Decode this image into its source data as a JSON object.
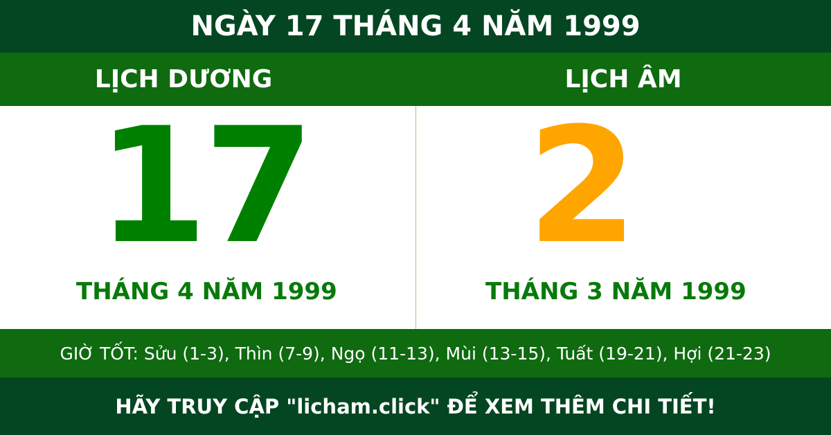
{
  "title": "NGÀY 17 THÁNG 4 NĂM 1999",
  "solar": {
    "label": "LỊCH DƯƠNG",
    "day": "17",
    "month_year": "THÁNG 4 NĂM 1999"
  },
  "lunar": {
    "label": "LỊCH ÂM",
    "day": "2",
    "month_year": "THÁNG 3 NĂM 1999"
  },
  "good_hours": "GIỜ TỐT: Sửu (1-3), Thìn (7-9), Ngọ (11-13), Mùi (13-15), Tuất (19-21), Hợi (21-23)",
  "footer": "HÃY TRUY CẬP \"licham.click\" ĐỂ XEM THÊM CHI TIẾT!",
  "colors": {
    "dark_green": "#044622",
    "bar_green": "#0f6a10",
    "solar_digit": "#008000",
    "lunar_digit": "#ffa500"
  }
}
